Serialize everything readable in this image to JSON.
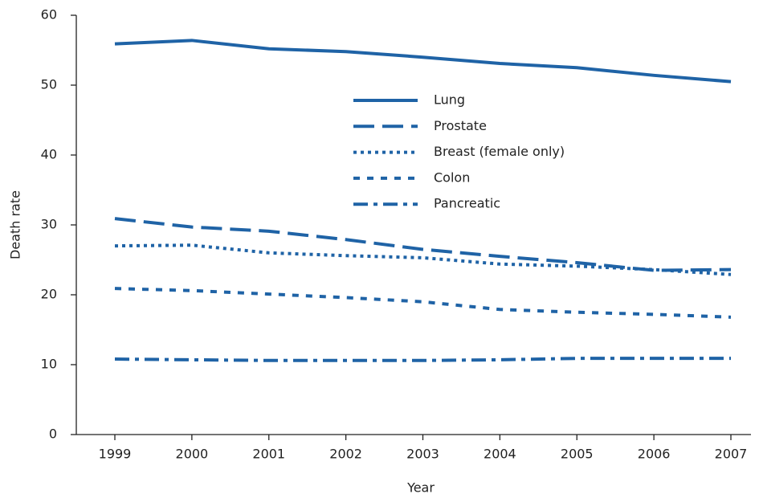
{
  "chart_data": {
    "type": "line",
    "x_label": "Year",
    "y_label": "Death rate",
    "categories": [
      "1999",
      "2000",
      "2001",
      "2002",
      "2003",
      "2004",
      "2005",
      "2006",
      "2007"
    ],
    "series": [
      {
        "name": "Lung",
        "color": "#1f63a6",
        "style": "solid",
        "values": [
          55.9,
          56.4,
          55.2,
          54.8,
          54.0,
          53.1,
          52.5,
          51.4,
          50.5
        ]
      },
      {
        "name": "Prostate",
        "color": "#1f63a6",
        "style": "dashed",
        "values": [
          30.9,
          29.7,
          29.1,
          27.9,
          26.5,
          25.5,
          24.6,
          23.5,
          23.6
        ]
      },
      {
        "name": "Breast (female only)",
        "color": "#1f63a6",
        "style": "dotted",
        "values": [
          27.0,
          27.1,
          26.0,
          25.6,
          25.3,
          24.4,
          24.1,
          23.6,
          22.9
        ]
      },
      {
        "name": "Colon",
        "color": "#1f63a6",
        "style": "short-dashed",
        "values": [
          20.9,
          20.6,
          20.1,
          19.6,
          19.0,
          17.9,
          17.5,
          17.2,
          16.8
        ]
      },
      {
        "name": "Pancreatic",
        "color": "#1f63a6",
        "style": "dash-dot",
        "values": [
          10.8,
          10.7,
          10.6,
          10.6,
          10.6,
          10.7,
          10.9,
          10.9,
          10.9
        ]
      }
    ],
    "ylim": [
      0,
      60
    ],
    "yticks": [
      0,
      10,
      20,
      30,
      40,
      50,
      60
    ],
    "grid": false,
    "legend": "top-center"
  }
}
